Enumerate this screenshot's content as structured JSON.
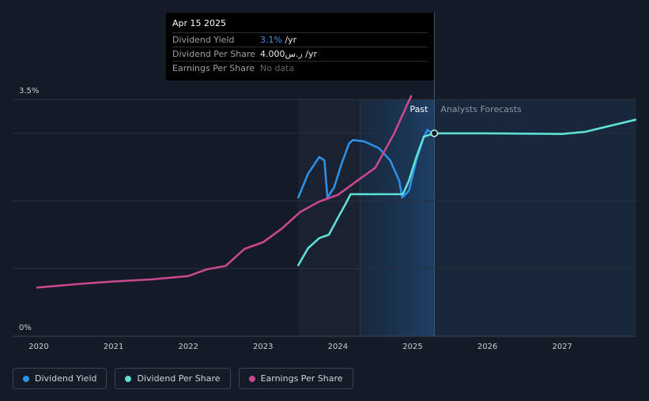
{
  "chart_data": {
    "type": "line",
    "x_ticks": [
      "2020",
      "2021",
      "2022",
      "2023",
      "2024",
      "2025",
      "2026",
      "2027"
    ],
    "y_ticks": [
      "3.5%",
      "0%"
    ],
    "ylim": [
      0,
      3.5
    ],
    "regions": {
      "past_label": "Past",
      "forecast_label": "Analysts Forecasts",
      "divider_date": "2025-04-15"
    },
    "series": [
      {
        "name": "Dividend Yield",
        "color": "#2e8fe6",
        "points": [
          [
            2023.47,
            2.05
          ],
          [
            2023.6,
            2.4
          ],
          [
            2023.75,
            2.65
          ],
          [
            2023.82,
            2.6
          ],
          [
            2023.86,
            2.05
          ],
          [
            2023.95,
            2.2
          ],
          [
            2024.05,
            2.55
          ],
          [
            2024.15,
            2.85
          ],
          [
            2024.2,
            2.9
          ],
          [
            2024.35,
            2.88
          ],
          [
            2024.55,
            2.78
          ],
          [
            2024.7,
            2.6
          ],
          [
            2024.82,
            2.3
          ],
          [
            2024.86,
            2.05
          ],
          [
            2024.95,
            2.15
          ],
          [
            2025.05,
            2.6
          ],
          [
            2025.15,
            2.95
          ],
          [
            2025.2,
            3.05
          ],
          [
            2025.26,
            3.0
          ]
        ]
      },
      {
        "name": "Dividend Per Share",
        "color": "#5ee0d6",
        "points": [
          [
            2023.47,
            1.05
          ],
          [
            2023.6,
            1.3
          ],
          [
            2023.75,
            1.45
          ],
          [
            2023.88,
            1.5
          ],
          [
            2024.0,
            1.75
          ],
          [
            2024.1,
            1.95
          ],
          [
            2024.17,
            2.1
          ],
          [
            2024.5,
            2.1
          ],
          [
            2024.87,
            2.1
          ],
          [
            2024.95,
            2.3
          ],
          [
            2025.05,
            2.65
          ],
          [
            2025.15,
            2.95
          ],
          [
            2025.29,
            3.0
          ],
          [
            2026.0,
            3.0
          ],
          [
            2027.0,
            2.99
          ],
          [
            2027.3,
            3.02
          ],
          [
            2027.6,
            3.1
          ],
          [
            2027.98,
            3.2
          ]
        ]
      },
      {
        "name": "Earnings Per Share",
        "color": "#c9478f",
        "points": [
          [
            2019.98,
            0.72
          ],
          [
            2020.5,
            0.77
          ],
          [
            2021.0,
            0.81
          ],
          [
            2021.5,
            0.84
          ],
          [
            2022.0,
            0.89
          ],
          [
            2022.25,
            0.99
          ],
          [
            2022.5,
            1.04
          ],
          [
            2022.75,
            1.29
          ],
          [
            2023.0,
            1.39
          ],
          [
            2023.25,
            1.59
          ],
          [
            2023.5,
            1.84
          ],
          [
            2023.75,
            1.99
          ],
          [
            2024.0,
            2.09
          ],
          [
            2024.25,
            2.29
          ],
          [
            2024.5,
            2.49
          ],
          [
            2024.75,
            2.99
          ],
          [
            2024.98,
            3.55
          ]
        ]
      }
    ],
    "tooltip": {
      "date": "Apr 15 2025",
      "rows": [
        {
          "label": "Dividend Yield",
          "value": "3.1%",
          "unit": " /yr"
        },
        {
          "label": "Dividend Per Share",
          "value": "4.000ر.س",
          "unit": " /yr"
        },
        {
          "label": "Earnings Per Share",
          "value": "No data",
          "unit": ""
        }
      ]
    }
  },
  "legend": [
    {
      "label": "Dividend Yield",
      "color": "#2e8fe6"
    },
    {
      "label": "Dividend Per Share",
      "color": "#5ee0d6"
    },
    {
      "label": "Earnings Per Share",
      "color": "#c9478f"
    }
  ]
}
